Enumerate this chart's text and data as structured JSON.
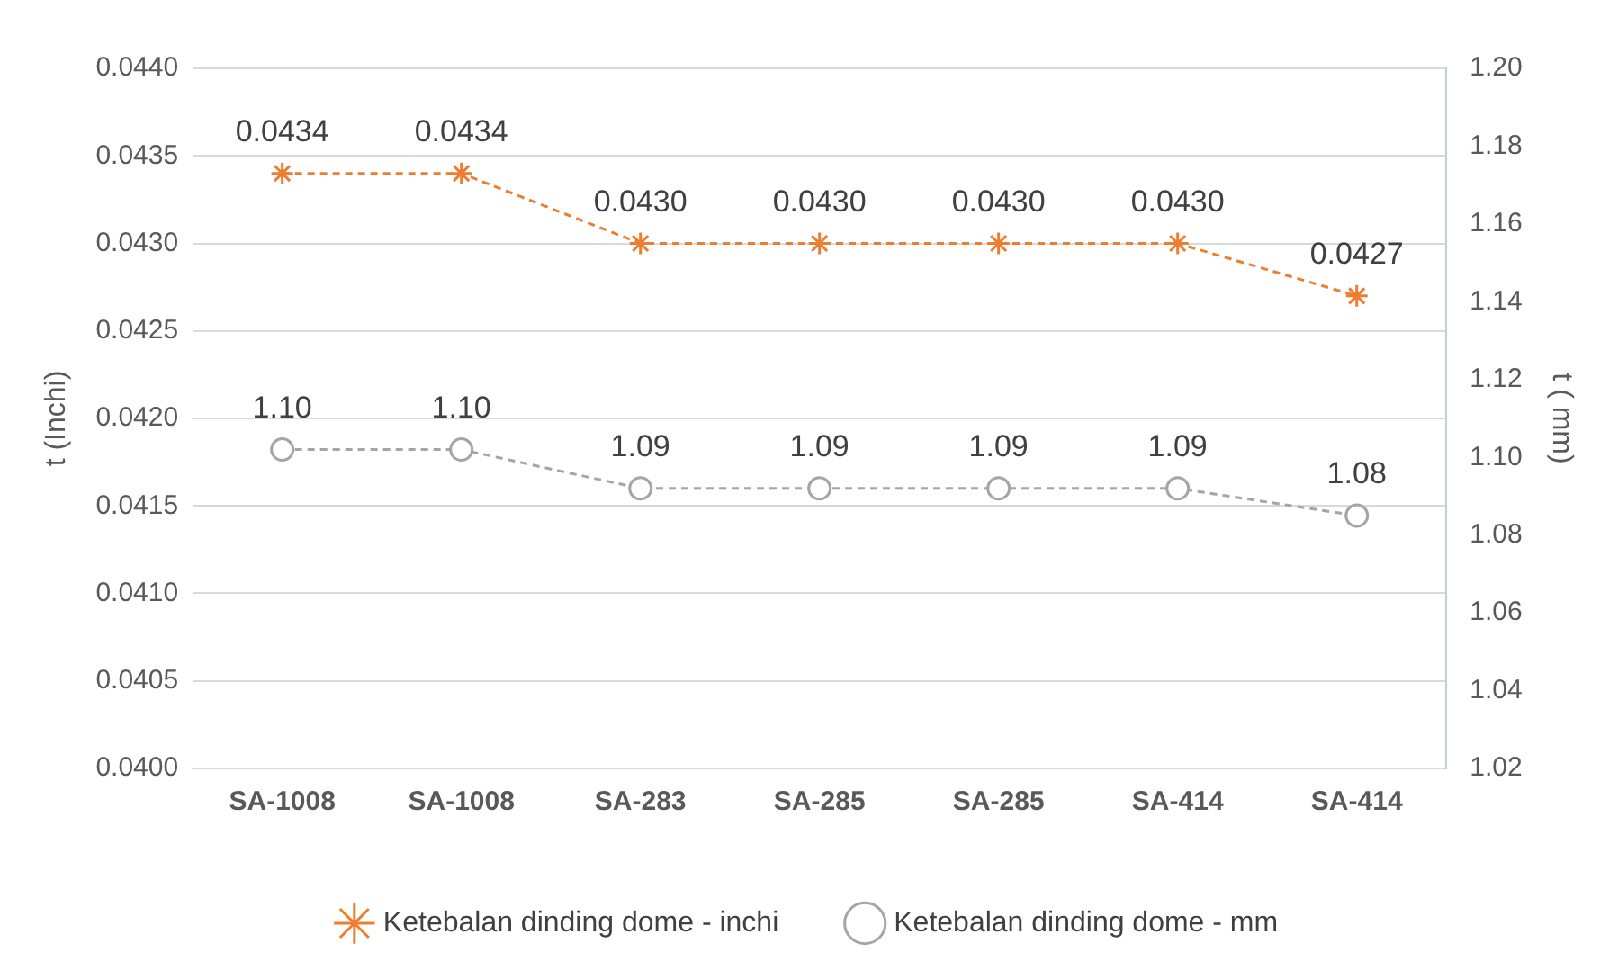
{
  "chart_data": {
    "type": "line",
    "ylabel": "t (Inchi)",
    "y2label": "t ( mm)",
    "categories": [
      "SA-1008",
      "SA-1008",
      "SA-283",
      "SA-285",
      "SA-285",
      "SA-414",
      "SA-414"
    ],
    "series": [
      {
        "name": "Ketebalan dinding dome - inchi",
        "color": "#ed7d31",
        "values": [
          0.0434,
          0.0434,
          0.043,
          0.043,
          0.043,
          0.043,
          0.0427
        ],
        "value_labels": [
          "0.0434",
          "0.0434",
          "0.0430",
          "0.0430",
          "0.0430",
          "0.0430",
          "0.0427"
        ],
        "marker": "cross",
        "line_style": "dashed"
      },
      {
        "name": "Ketebalan dinding dome - mm",
        "color": "#a5a5a5",
        "axis": "y2",
        "values": [
          1.102,
          1.102,
          1.092,
          1.092,
          1.092,
          1.092,
          1.085
        ],
        "value_labels": [
          "1.10",
          "1.10",
          "1.09",
          "1.09",
          "1.09",
          "1.09",
          "1.08"
        ],
        "marker": "circle",
        "line_style": "dashed"
      }
    ],
    "ylim": [
      0.04,
      0.044
    ],
    "yticks": [
      {
        "value": 0.04,
        "label": "0.0400"
      },
      {
        "value": 0.0405,
        "label": "0.0405"
      },
      {
        "value": 0.041,
        "label": "0.0410"
      },
      {
        "value": 0.0415,
        "label": "0.0415"
      },
      {
        "value": 0.042,
        "label": "0.0420"
      },
      {
        "value": 0.0425,
        "label": "0.0425"
      },
      {
        "value": 0.043,
        "label": "0.0430"
      },
      {
        "value": 0.0435,
        "label": "0.0435"
      },
      {
        "value": 0.044,
        "label": "0.0440"
      }
    ],
    "y2lim": [
      1.02,
      1.2
    ],
    "y2ticks": [
      {
        "value": 1.02,
        "label": "1.02"
      },
      {
        "value": 1.04,
        "label": "1.04"
      },
      {
        "value": 1.06,
        "label": "1.06"
      },
      {
        "value": 1.08,
        "label": "1.08"
      },
      {
        "value": 1.1,
        "label": "1.10"
      },
      {
        "value": 1.12,
        "label": "1.12"
      },
      {
        "value": 1.14,
        "label": "1.14"
      },
      {
        "value": 1.16,
        "label": "1.16"
      },
      {
        "value": 1.18,
        "label": "1.18"
      },
      {
        "value": 1.2,
        "label": "1.20"
      }
    ],
    "grid": "y",
    "legend": "bottom"
  }
}
